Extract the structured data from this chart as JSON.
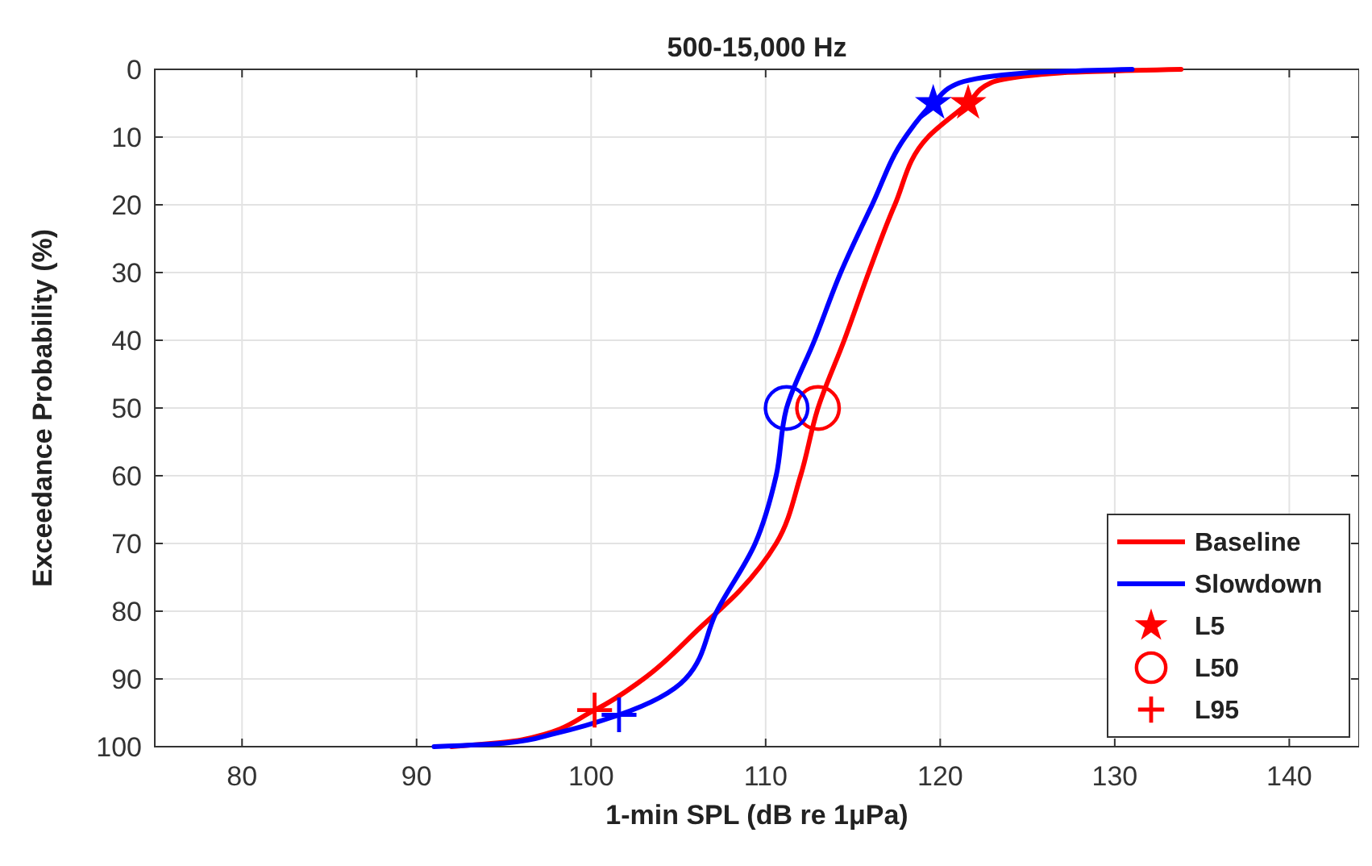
{
  "chart_data": {
    "type": "line",
    "title": "500-15,000 Hz",
    "xlabel": "1-min SPL (dB re 1μPa)",
    "ylabel": "Exceedance Probability (%)",
    "xlim": [
      75,
      144
    ],
    "xticks": [
      80,
      90,
      100,
      110,
      120,
      130,
      140
    ],
    "ylim": [
      100,
      0
    ],
    "yticks": [
      0,
      10,
      20,
      30,
      40,
      50,
      60,
      70,
      80,
      90,
      100
    ],
    "grid": true,
    "legend": "bottom right",
    "series": [
      {
        "name": "Baseline",
        "color": "#ff0000",
        "marker": "none",
        "line_style": "solid",
        "x": [
          92,
          96,
          100.2,
          103,
          106.3,
          108.5,
          110.6,
          112,
          113,
          114.5,
          115.9,
          117.4,
          119.3,
          121.6,
          122.9,
          127,
          133.8
        ],
        "values": [
          100,
          99,
          94.6,
          90,
          82.3,
          77,
          70,
          60,
          50,
          40,
          30,
          20,
          10,
          5,
          2,
          0.5,
          0
        ]
      },
      {
        "name": "Slowdown",
        "color": "#0000ff",
        "marker": "none",
        "line_style": "solid",
        "x": [
          91,
          95,
          98,
          101.6,
          105.4,
          107.2,
          109.4,
          110.6,
          111.2,
          112.8,
          114.3,
          116.1,
          118,
          119.6,
          121.1,
          125,
          131
        ],
        "values": [
          100,
          99.5,
          98,
          95.3,
          90,
          80,
          70,
          60,
          50,
          40,
          30,
          20,
          10,
          5,
          2,
          0.5,
          0
        ]
      },
      {
        "name": "L5",
        "type": "scatter",
        "color": "#ff0000",
        "marker": "star",
        "colors": [
          "#ff0000",
          "#0000ff"
        ],
        "x": [
          121.6,
          119.6
        ],
        "values": [
          5,
          5
        ]
      },
      {
        "name": "L50",
        "type": "scatter",
        "color": "#ff0000",
        "marker": "circle",
        "colors": [
          "#ff0000",
          "#0000ff"
        ],
        "x": [
          113,
          111.2
        ],
        "values": [
          50,
          50
        ]
      },
      {
        "name": "L95",
        "type": "scatter",
        "color": "#ff0000",
        "marker": "cross",
        "colors": [
          "#ff0000",
          "#0000ff"
        ],
        "x": [
          100.2,
          101.6
        ],
        "values": [
          94.6,
          95.3
        ]
      }
    ]
  }
}
